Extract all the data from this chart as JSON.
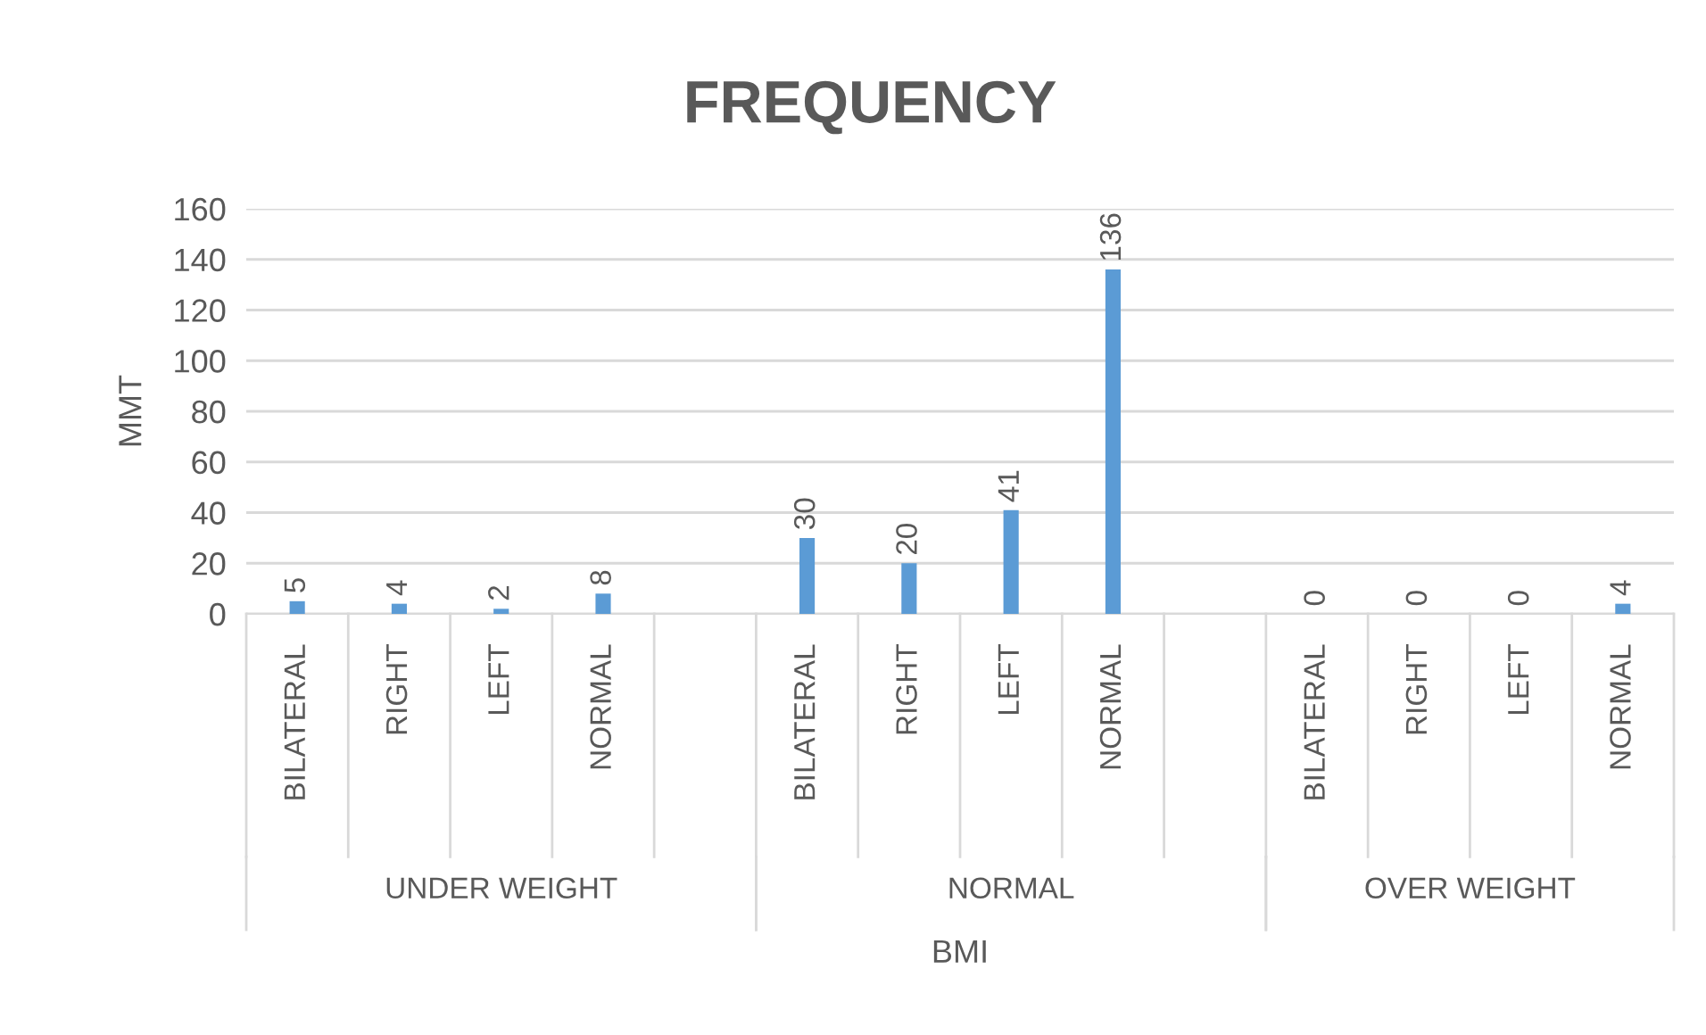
{
  "chart_data": {
    "type": "bar",
    "title": "FREQUENCY",
    "xlabel": "BMI",
    "ylabel": "MMT",
    "categories": [
      "BILATERAL",
      "RIGHT",
      "LEFT",
      "NORMAL",
      null,
      "BILATERAL",
      "RIGHT",
      "LEFT",
      "NORMAL",
      null,
      "BILATERAL",
      "RIGHT",
      "LEFT",
      "NORMAL"
    ],
    "values": [
      5,
      4,
      2,
      8,
      null,
      30,
      20,
      41,
      136,
      null,
      0,
      0,
      0,
      4
    ],
    "color": "#5b9bd5",
    "annotations": [
      "UNDER WEIGHT",
      "NORMAL",
      "OVER WEIGHT"
    ],
    "ylim": [
      0,
      160
    ],
    "yticks": [
      0,
      20,
      40,
      60,
      80,
      100,
      120,
      140,
      160
    ],
    "grid": "y",
    "data_labels": true
  }
}
